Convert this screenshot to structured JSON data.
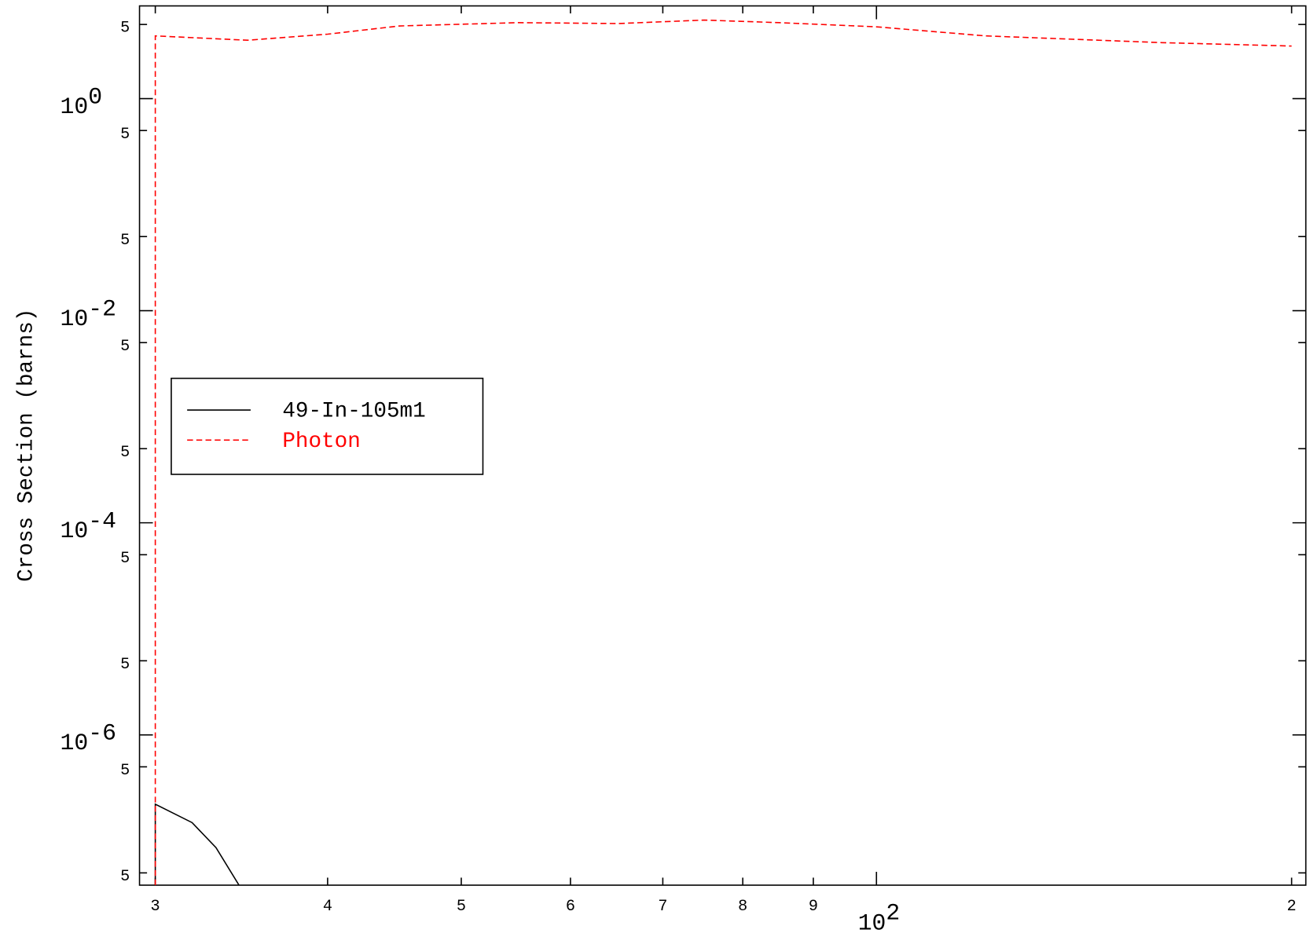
{
  "chart_data": {
    "type": "line",
    "y_label": "Cross Section (barns)",
    "log_x": true,
    "log_y": true,
    "xlim": [
      29.22,
      204.8
    ],
    "ylim": [
      3.83e-08,
      7.48
    ],
    "xticks": [
      {
        "value": 30,
        "label": "3"
      },
      {
        "value": 40,
        "label": "4"
      },
      {
        "value": 50,
        "label": "5"
      },
      {
        "value": 60,
        "label": "6"
      },
      {
        "value": 70,
        "label": "7"
      },
      {
        "value": 80,
        "label": "8"
      },
      {
        "value": 90,
        "label": "9"
      },
      {
        "value": 100,
        "label": "10^2"
      },
      {
        "value": 200,
        "label": "2"
      }
    ],
    "yticks": [
      {
        "value": 5,
        "label": "5"
      },
      {
        "value": 1,
        "label": "10^0"
      },
      {
        "value": 0.5,
        "label": "5"
      },
      {
        "value": 0.05,
        "label": "5"
      },
      {
        "value": 0.01,
        "label": "10^-2"
      },
      {
        "value": 0.005,
        "label": "5"
      },
      {
        "value": 0.0005,
        "label": "5"
      },
      {
        "value": 0.0001,
        "label": "10^-4"
      },
      {
        "value": 5e-05,
        "label": "5"
      },
      {
        "value": 5e-06,
        "label": "5"
      },
      {
        "value": 1e-06,
        "label": "10^-6"
      },
      {
        "value": 5e-07,
        "label": "5"
      },
      {
        "value": 5e-08,
        "label": "5"
      }
    ],
    "legend": "upper-left",
    "series": [
      {
        "name": "49-In-105m1",
        "color": "#000000",
        "dash": false,
        "x": [
          30,
          30,
          31.9,
          33.2,
          34.5
        ],
        "values": [
          3.83e-08,
          2.22e-07,
          1.49e-07,
          8.65e-08,
          3.83e-08
        ]
      },
      {
        "name": "Photon",
        "color": "#ff0000",
        "dash": true,
        "x": [
          30,
          30,
          35,
          40,
          45.1,
          55,
          65,
          75,
          85,
          100,
          120,
          161,
          200
        ],
        "values": [
          3.83e-08,
          3.9,
          3.55,
          4.05,
          4.84,
          5.2,
          5.1,
          5.5,
          5.2,
          4.75,
          3.9,
          3.37,
          3.13
        ]
      }
    ]
  }
}
